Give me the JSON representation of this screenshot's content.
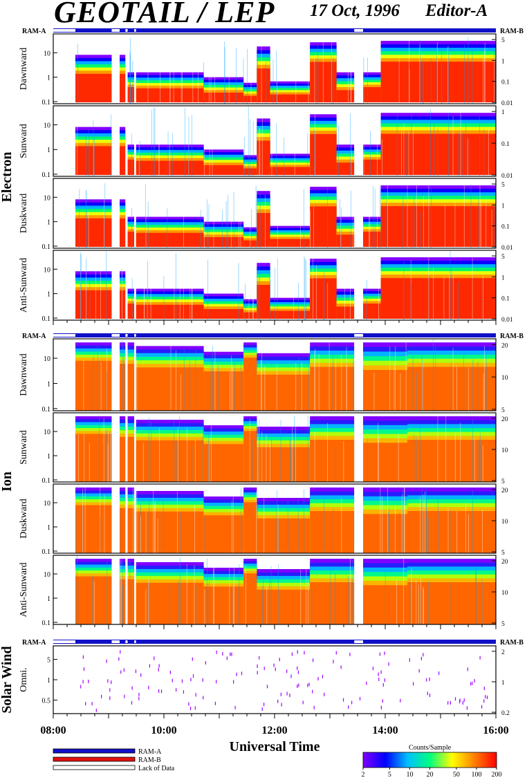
{
  "header": {
    "title": "GEOTAIL / LEP",
    "date": "17 Oct, 1996",
    "editor": "Editor-A"
  },
  "ram_labels": {
    "left": "RAM-A",
    "right": "RAM-B"
  },
  "groups": [
    {
      "label": "Electron",
      "panels": [
        {
          "label": "Dawnward",
          "left_ticks": [
            "10",
            "1",
            "0.1"
          ],
          "right_ticks": [
            "5",
            "1",
            "0.1",
            "0.01"
          ]
        },
        {
          "label": "Sunward",
          "left_ticks": [
            "10",
            "1",
            "0.1"
          ],
          "right_ticks": [
            "1",
            "0.1",
            "0.01"
          ]
        },
        {
          "label": "Duskward",
          "left_ticks": [
            "10",
            "1",
            "0.1"
          ],
          "right_ticks": [
            "5",
            "1",
            "0.1",
            "0.01"
          ]
        },
        {
          "label": "Anti-Sunward",
          "left_ticks": [
            "10",
            "1",
            "0.1"
          ],
          "right_ticks": [
            "5",
            "1",
            "0.1",
            "0.01"
          ]
        }
      ]
    },
    {
      "label": "Ion",
      "panels": [
        {
          "label": "Dawnward",
          "left_ticks": [
            "10",
            "1",
            "0.1"
          ],
          "right_ticks": [
            "20",
            "10",
            "5"
          ]
        },
        {
          "label": "Sunward",
          "left_ticks": [
            "10",
            "1",
            "0.1"
          ],
          "right_ticks": [
            "20",
            "10",
            "5"
          ]
        },
        {
          "label": "Duskward",
          "left_ticks": [
            "10",
            "1",
            "0.1"
          ],
          "right_ticks": [
            "20",
            "10",
            "5"
          ]
        },
        {
          "label": "Anti-Sunward",
          "left_ticks": [
            "10",
            "1",
            "0.1"
          ],
          "right_ticks": [
            "20",
            "10",
            "5"
          ]
        }
      ]
    },
    {
      "label": "Solar Wind",
      "panels": [
        {
          "label": "Omni.",
          "left_ticks": [
            "5",
            "1",
            "0.5"
          ],
          "right_ticks": [
            "2",
            "1",
            "0.2"
          ]
        }
      ]
    }
  ],
  "x_axis": {
    "label": "Universal Time",
    "ticks": [
      "08:00",
      "10:00",
      "12:00",
      "14:00",
      "16:00"
    ]
  },
  "legend": {
    "items": [
      {
        "label": "RAM-A",
        "color": "#1010c8"
      },
      {
        "label": "RAM-B",
        "color": "#e01010"
      },
      {
        "label": "Lack of Data",
        "color": "#ffffff"
      }
    ]
  },
  "colorbar": {
    "title": "Counts/Sample",
    "ticks": [
      "2",
      "5",
      "10",
      "20",
      "50",
      "100",
      "200"
    ],
    "colors": [
      "#8000ff",
      "#0000ff",
      "#00c0ff",
      "#00ff80",
      "#ffff00",
      "#ff8000",
      "#ff0000"
    ]
  },
  "chart_data": {
    "type": "heatmap",
    "title": "GEOTAIL / LEP",
    "xlabel": "Universal Time",
    "xlim": [
      "08:00",
      "16:00"
    ],
    "colorbar_label": "Counts/Sample",
    "colorbar_range": [
      2,
      200
    ],
    "panels": [
      {
        "group": "Electron",
        "label": "Dawnward"
      },
      {
        "group": "Electron",
        "label": "Sunward"
      },
      {
        "group": "Electron",
        "label": "Duskward"
      },
      {
        "group": "Electron",
        "label": "Anti-Sunward"
      },
      {
        "group": "Ion",
        "label": "Dawnward"
      },
      {
        "group": "Ion",
        "label": "Sunward"
      },
      {
        "group": "Ion",
        "label": "Duskward"
      },
      {
        "group": "Ion",
        "label": "Anti-Sunward"
      },
      {
        "group": "Solar Wind",
        "label": "Omni."
      }
    ],
    "data_gaps_utc": [
      "08:00-08:24",
      "09:05-09:14",
      "09:20-09:23",
      "13:32-13:40"
    ]
  }
}
